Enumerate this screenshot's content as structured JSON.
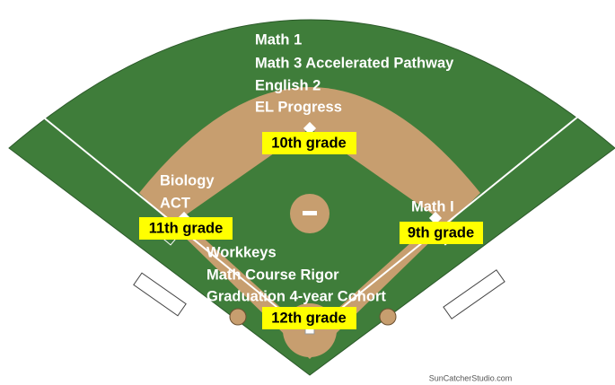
{
  "bases": {
    "second": {
      "items": [
        "Math 1",
        "Math 3 Accelerated Pathway",
        "English 2",
        "EL Progress"
      ],
      "grade": "10th grade"
    },
    "third": {
      "items": [
        "Biology",
        "ACT"
      ],
      "grade": "11th grade"
    },
    "first": {
      "items": [
        "Math I"
      ],
      "grade": "9th grade"
    },
    "home": {
      "items": [
        "Workkeys",
        "Math Course Rigor",
        "Graduation 4-year Cohort"
      ],
      "grade": "12th grade"
    }
  },
  "credit": "SunCatcherStudio.com"
}
